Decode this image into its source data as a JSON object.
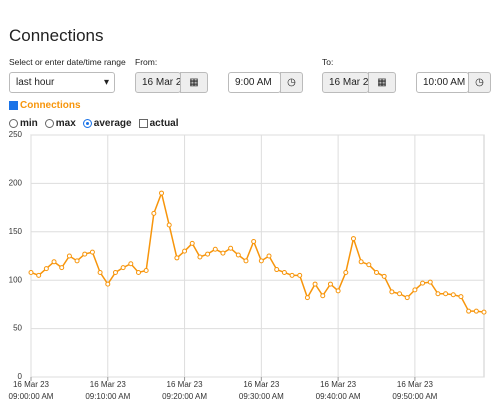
{
  "header": {
    "title": "Connections"
  },
  "controls": {
    "range_label": "Select or enter date/time range",
    "range_value": "last hour",
    "from_label": "From:",
    "from_date": "16 Mar 2",
    "from_time": "9:00 AM",
    "to_label": "To:",
    "to_date": "16 Mar 2",
    "to_time": "10:00 AM"
  },
  "series_checked": true,
  "aggregations": [
    {
      "label": "min",
      "kind": "radio",
      "checked": false
    },
    {
      "label": "max",
      "kind": "radio",
      "checked": false
    },
    {
      "label": "average",
      "kind": "radio",
      "checked": true
    },
    {
      "label": "actual",
      "kind": "checkbox",
      "checked": false
    }
  ],
  "chart_data": {
    "type": "line",
    "x": [
      0,
      1,
      2,
      3,
      4,
      5,
      6,
      7,
      8,
      9,
      10,
      11,
      12,
      13,
      14,
      15,
      16,
      17,
      18,
      19,
      20,
      21,
      22,
      23,
      24,
      25,
      26,
      27,
      28,
      29,
      30,
      31,
      32,
      33,
      34,
      35,
      36,
      37,
      38,
      39,
      40,
      41,
      42,
      43,
      44,
      45,
      46,
      47,
      48,
      49,
      50,
      51,
      52,
      53,
      54,
      55,
      56,
      57,
      58,
      59
    ],
    "series": [
      {
        "name": "Connections",
        "color": "#f7950b",
        "values": [
          108,
          105,
          112,
          119,
          113,
          125,
          120,
          127,
          129,
          108,
          96,
          108,
          113,
          117,
          108,
          110,
          169,
          190,
          157,
          123,
          130,
          138,
          124,
          127,
          132,
          128,
          133,
          126,
          120,
          140,
          120,
          125,
          111,
          108,
          105,
          105,
          82,
          96,
          84,
          96,
          89,
          108,
          143,
          119,
          116,
          108,
          104,
          88,
          86,
          82,
          90,
          97,
          98,
          86,
          86,
          85,
          83,
          68,
          68,
          67
        ]
      }
    ],
    "xlim": [
      0,
      59
    ],
    "xticks": [
      {
        "value": 0,
        "label": [
          "16 Mar 23",
          "09:00:00 AM"
        ]
      },
      {
        "value": 10,
        "label": [
          "16 Mar 23",
          "09:10:00 AM"
        ]
      },
      {
        "value": 20,
        "label": [
          "16 Mar 23",
          "09:20:00 AM"
        ]
      },
      {
        "value": 30,
        "label": [
          "16 Mar 23",
          "09:30:00 AM"
        ]
      },
      {
        "value": 40,
        "label": [
          "16 Mar 23",
          "09:40:00 AM"
        ]
      },
      {
        "value": 50,
        "label": [
          "16 Mar 23",
          "09:50:00 AM"
        ]
      }
    ],
    "ylim": [
      0,
      250
    ],
    "yticks": [
      0,
      50,
      100,
      150,
      200,
      250
    ],
    "grid": true
  }
}
